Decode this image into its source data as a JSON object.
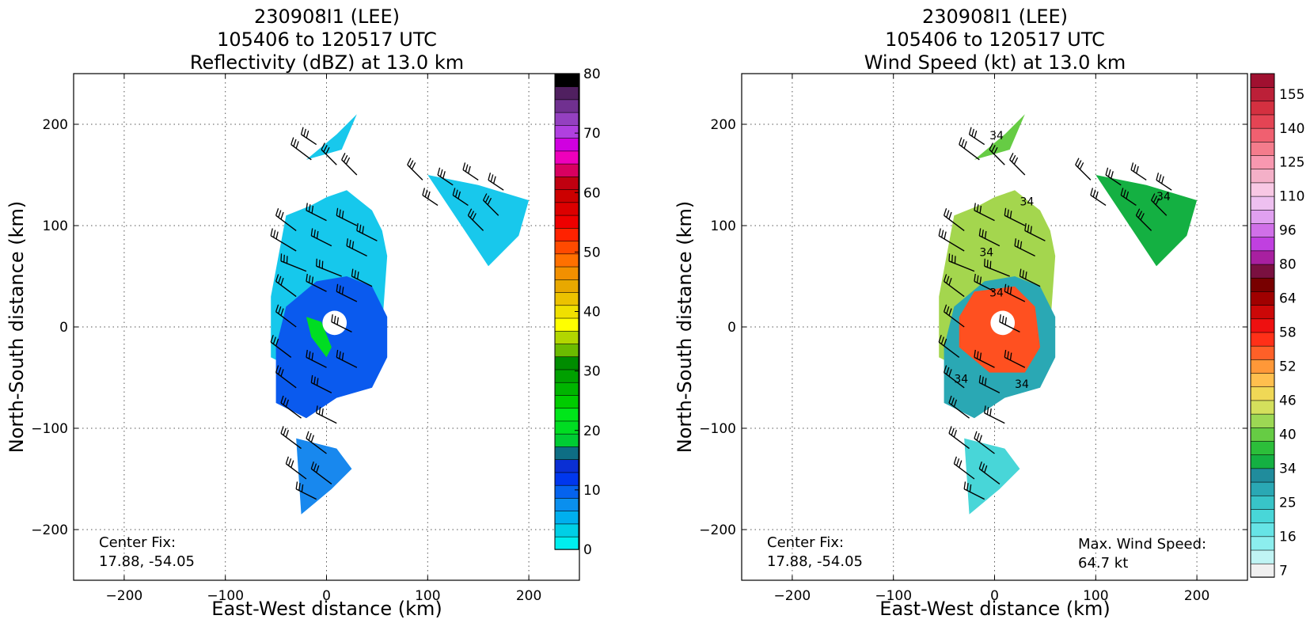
{
  "chart_data": [
    {
      "type": "heatmap",
      "title": [
        "230908I1 (LEE)",
        "105406 to 120517 UTC",
        "Reflectivity (dBZ) at 13.0 km"
      ],
      "xlabel": "East-West distance (km)",
      "ylabel": "North-South distance (km)",
      "xlim": [
        -250,
        250
      ],
      "ylim": [
        -250,
        250
      ],
      "xticks": [
        -200,
        -100,
        0,
        100,
        200
      ],
      "yticks": [
        -200,
        -100,
        0,
        100,
        200
      ],
      "grid": true,
      "annotation": [
        "Center Fix:",
        "17.88, -54.05"
      ],
      "colorbar": {
        "range": [
          0,
          80
        ],
        "ticks": [
          0,
          10,
          20,
          30,
          40,
          50,
          60,
          70,
          80
        ],
        "colors": [
          "#00eeee",
          "#00cfe6",
          "#00afee",
          "#0a8fee",
          "#0563ee",
          "#0037ee",
          "#0a2fd4",
          "#0e6e84",
          "#00cc33",
          "#00dd22",
          "#00e61a",
          "#00cc00",
          "#00b400",
          "#00a000",
          "#008c00",
          "#6cbb00",
          "#b2d600",
          "#ffff00",
          "#f0e000",
          "#ecc200",
          "#e8a800",
          "#f29000",
          "#ff7000",
          "#ff4a00",
          "#ff2200",
          "#ee0000",
          "#dc0000",
          "#cc0000",
          "#c00010",
          "#d80060",
          "#ee00bb",
          "#d000e0",
          "#b040e0",
          "#9440c0",
          "#703090",
          "#502060",
          "#000000"
        ]
      },
      "echo_regions_km": [
        {
          "x": [
            -55,
            -5,
            35,
            55,
            60,
            55,
            45,
            20,
            0,
            -15,
            -40,
            -55
          ],
          "y": [
            -30,
            -55,
            -40,
            0,
            70,
            95,
            115,
            135,
            128,
            120,
            110,
            30
          ],
          "level": "light"
        },
        {
          "x": [
            -50,
            -20,
            10,
            45,
            60,
            60,
            45,
            20,
            -10,
            -40,
            -50
          ],
          "y": [
            -75,
            -90,
            -70,
            -60,
            -30,
            10,
            40,
            50,
            45,
            20,
            -20
          ],
          "level": "medium"
        }
      ],
      "core_region_km": {
        "x": [
          -20,
          -5,
          5,
          0,
          -15
        ],
        "y": [
          10,
          5,
          -20,
          -30,
          -10
        ]
      },
      "eye_km": {
        "cx": 8,
        "cy": 4,
        "r": 12
      },
      "rain_band_km": [
        {
          "x": [
            -30,
            10,
            25,
            5,
            -25
          ],
          "y": [
            -110,
            -120,
            -140,
            -160,
            -185
          ]
        },
        {
          "x": [
            100,
            150,
            200,
            190,
            160,
            140
          ],
          "y": [
            150,
            140,
            125,
            90,
            60,
            90
          ]
        },
        {
          "x": [
            -20,
            10,
            30,
            15
          ],
          "y": [
            165,
            190,
            210,
            175
          ]
        }
      ],
      "wind_barbs_km": [
        [
          -10,
          180,
          -25,
          190
        ],
        [
          10,
          160,
          -5,
          175
        ],
        [
          -15,
          165,
          -35,
          180
        ],
        [
          30,
          150,
          15,
          165
        ],
        [
          95,
          145,
          80,
          160
        ],
        [
          125,
          140,
          110,
          150
        ],
        [
          150,
          145,
          135,
          155
        ],
        [
          175,
          135,
          160,
          145
        ],
        [
          110,
          120,
          95,
          130
        ],
        [
          140,
          120,
          125,
          130
        ],
        [
          170,
          110,
          155,
          125
        ],
        [
          155,
          95,
          140,
          110
        ],
        [
          -30,
          95,
          -50,
          110
        ],
        [
          0,
          105,
          -20,
          115
        ],
        [
          30,
          100,
          10,
          110
        ],
        [
          50,
          85,
          30,
          95
        ],
        [
          -30,
          75,
          -55,
          90
        ],
        [
          5,
          80,
          -15,
          90
        ],
        [
          40,
          70,
          20,
          80
        ],
        [
          -20,
          55,
          -45,
          65
        ],
        [
          15,
          50,
          -10,
          60
        ],
        [
          45,
          40,
          25,
          50
        ],
        [
          -30,
          30,
          -50,
          45
        ],
        [
          0,
          35,
          -20,
          45
        ],
        [
          30,
          25,
          10,
          35
        ],
        [
          -30,
          0,
          -50,
          15
        ],
        [
          25,
          -5,
          5,
          5
        ],
        [
          -35,
          -30,
          -55,
          -15
        ],
        [
          0,
          -40,
          -20,
          -30
        ],
        [
          30,
          -40,
          10,
          -30
        ],
        [
          -30,
          -60,
          -50,
          -45
        ],
        [
          5,
          -65,
          -15,
          -55
        ],
        [
          -25,
          -90,
          -45,
          -75
        ],
        [
          10,
          -95,
          -10,
          -85
        ],
        [
          -25,
          -120,
          -45,
          -105
        ],
        [
          0,
          -125,
          -20,
          -110
        ],
        [
          -20,
          -150,
          -40,
          -135
        ],
        [
          5,
          -155,
          -15,
          -140
        ],
        [
          -10,
          -170,
          -30,
          -160
        ]
      ]
    },
    {
      "type": "heatmap",
      "title": [
        "230908I1 (LEE)",
        "105406 to 120517 UTC",
        "Wind Speed (kt) at 13.0 km"
      ],
      "xlabel": "East-West distance (km)",
      "ylabel": "North-South distance (km)",
      "xlim": [
        -250,
        250
      ],
      "ylim": [
        -250,
        250
      ],
      "xticks": [
        -200,
        -100,
        0,
        100,
        200
      ],
      "yticks": [
        -200,
        -100,
        0,
        100,
        200
      ],
      "grid": true,
      "annotation": [
        "Center Fix:",
        "17.88, -54.05"
      ],
      "annotation_right": [
        "Max. Wind Speed:",
        "64.7 kt"
      ],
      "max_wind_kt": 64.7,
      "colorbar": {
        "ticks": [
          "7",
          "16",
          "25",
          "34",
          "40",
          "46",
          "52",
          "58",
          "64",
          "80",
          "96",
          "110",
          "125",
          "140",
          "155"
        ],
        "colors": [
          "#f0f0f0",
          "#c0f4f4",
          "#8ceeee",
          "#66e4e6",
          "#48d6d8",
          "#38c4c8",
          "#2aa8b4",
          "#208c9c",
          "#14b042",
          "#2cbe3a",
          "#66cc44",
          "#9cd854",
          "#d4e05c",
          "#f0d856",
          "#ffbf4e",
          "#ff9838",
          "#ff6028",
          "#ff3018",
          "#ee1010",
          "#cc0808",
          "#a00000",
          "#780000",
          "#7a1040",
          "#a820a0",
          "#c040e0",
          "#d070e8",
          "#e0a0f0",
          "#eec0f0",
          "#f8c8e4",
          "#f4b0c8",
          "#f898b0",
          "#f47c8c",
          "#f06070",
          "#e44454",
          "#d43040",
          "#bc2038",
          "#a01030"
        ]
      },
      "contour_labels": [
        "34",
        "34",
        "34",
        "34",
        "34",
        "34",
        "34"
      ]
    }
  ]
}
